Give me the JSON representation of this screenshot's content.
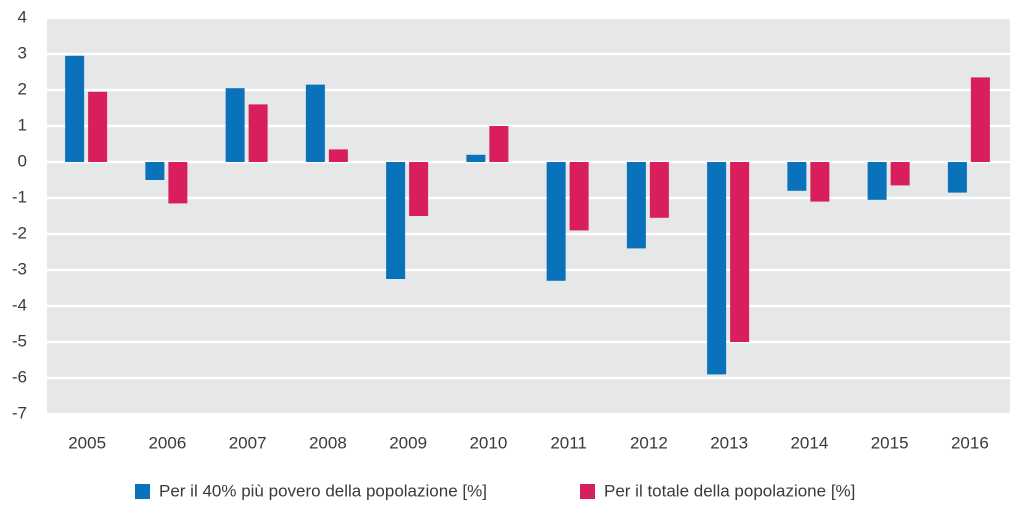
{
  "chart_data": {
    "type": "bar",
    "categories": [
      "2005",
      "2006",
      "2007",
      "2008",
      "2009",
      "2010",
      "2011",
      "2012",
      "2013",
      "2014",
      "2015",
      "2016"
    ],
    "series": [
      {
        "name": "Per il 40% più povero della popolazione [%]",
        "color": "#0a72ba",
        "values": [
          2.95,
          -0.5,
          2.05,
          2.15,
          -3.25,
          0.2,
          -3.3,
          -2.4,
          -5.9,
          -0.8,
          -1.05,
          -0.85
        ]
      },
      {
        "name": "Per il totale della popolazione [%]",
        "color": "#d81e5b",
        "values": [
          1.95,
          -1.15,
          1.6,
          0.35,
          -1.5,
          1.0,
          -1.9,
          -1.55,
          -5.0,
          -1.1,
          -0.65,
          2.35
        ]
      }
    ],
    "ylim": [
      -7,
      4
    ],
    "yticks": [
      -7,
      -6,
      -5,
      -4,
      -3,
      -2,
      -1,
      0,
      1,
      2,
      3,
      4
    ],
    "grid": true
  }
}
